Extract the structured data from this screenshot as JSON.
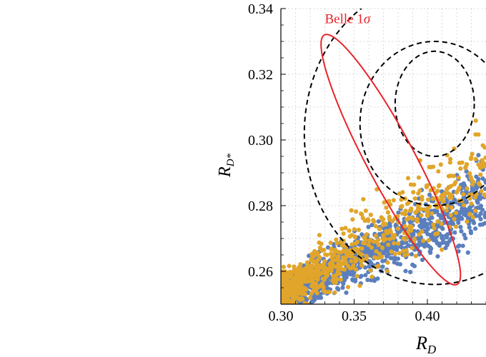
{
  "chart_data": {
    "type": "scatter",
    "xlabel": "R",
    "xlabel_sub": "D",
    "ylabel": "R",
    "ylabel_sub": "D*",
    "xlim": [
      0.3,
      0.44
    ],
    "ylim": [
      0.25,
      0.34
    ],
    "xticks": [
      0.3,
      0.35,
      0.4
    ],
    "xtick_labels": [
      "0.30",
      "0.35",
      "0.40"
    ],
    "yticks": [
      0.26,
      0.28,
      0.3,
      0.32,
      0.34
    ],
    "ytick_labels": [
      "0.26",
      "0.28",
      "0.30",
      "0.32",
      "0.34"
    ],
    "grid": true,
    "colors": {
      "blue": "#5b7fbd",
      "orange": "#e0a52a",
      "belle": "#e8232a",
      "contour": "#000000"
    },
    "annotation": {
      "label": "Belle 1",
      "symbol": "σ",
      "at": [
        0.33,
        0.3355
      ]
    },
    "belle_ellipse": {
      "center": [
        0.375,
        0.294
      ],
      "semi_axes": [
        0.0165,
        0.043
      ],
      "rotation_deg": 28
    },
    "dashed_contours": [
      {
        "center": [
          0.405,
          0.311
        ],
        "semi_axes": [
          0.027,
          0.016
        ],
        "rotation_deg": 0
      },
      {
        "center": [
          0.405,
          0.305
        ],
        "semi_axes": [
          0.051,
          0.025
        ],
        "rotation_deg": 0
      },
      {
        "center": [
          0.405,
          0.302
        ],
        "semi_axes": [
          0.089,
          0.046
        ],
        "rotation_deg": 0
      }
    ],
    "series": [
      {
        "color": "#5b7fbd",
        "band": {
          "x_range": [
            0.3,
            0.44
          ],
          "y_at_xmin": 0.252,
          "y_at_xmax": 0.283,
          "spread": 0.004
        },
        "points": [
          [
            0.301,
            0.251
          ],
          [
            0.305,
            0.253
          ],
          [
            0.31,
            0.254
          ],
          [
            0.315,
            0.255
          ],
          [
            0.32,
            0.257
          ],
          [
            0.325,
            0.258
          ],
          [
            0.33,
            0.259
          ],
          [
            0.335,
            0.261
          ],
          [
            0.34,
            0.262
          ],
          [
            0.345,
            0.263
          ],
          [
            0.35,
            0.265
          ],
          [
            0.355,
            0.266
          ],
          [
            0.36,
            0.267
          ],
          [
            0.365,
            0.268
          ],
          [
            0.37,
            0.27
          ],
          [
            0.375,
            0.271
          ],
          [
            0.38,
            0.272
          ],
          [
            0.385,
            0.273
          ],
          [
            0.39,
            0.274
          ],
          [
            0.395,
            0.276
          ],
          [
            0.4,
            0.277
          ],
          [
            0.405,
            0.278
          ],
          [
            0.41,
            0.279
          ],
          [
            0.415,
            0.28
          ],
          [
            0.42,
            0.281
          ],
          [
            0.425,
            0.283
          ],
          [
            0.43,
            0.284
          ],
          [
            0.435,
            0.286
          ],
          [
            0.44,
            0.287
          ]
        ]
      },
      {
        "color": "#e0a52a",
        "band": {
          "x_range": [
            0.3,
            0.44
          ],
          "y_at_xmin": 0.253,
          "y_at_xmax": 0.291,
          "spread": 0.005
        },
        "points": [
          [
            0.301,
            0.252
          ],
          [
            0.305,
            0.254
          ],
          [
            0.31,
            0.255
          ],
          [
            0.315,
            0.257
          ],
          [
            0.32,
            0.258
          ],
          [
            0.325,
            0.259
          ],
          [
            0.33,
            0.261
          ],
          [
            0.335,
            0.262
          ],
          [
            0.34,
            0.263
          ],
          [
            0.345,
            0.265
          ],
          [
            0.35,
            0.266
          ],
          [
            0.355,
            0.267
          ],
          [
            0.36,
            0.268
          ],
          [
            0.365,
            0.269
          ],
          [
            0.37,
            0.271
          ],
          [
            0.375,
            0.272
          ],
          [
            0.38,
            0.273
          ],
          [
            0.39,
            0.276
          ],
          [
            0.4,
            0.279
          ],
          [
            0.41,
            0.282
          ],
          [
            0.42,
            0.284
          ],
          [
            0.43,
            0.288
          ],
          [
            0.44,
            0.292
          ]
        ]
      }
    ]
  }
}
